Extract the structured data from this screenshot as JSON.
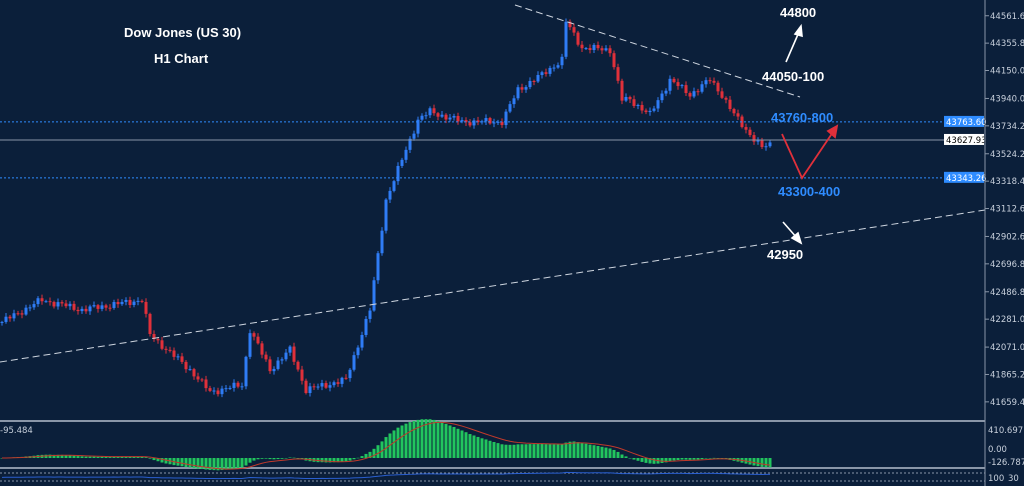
{
  "chart_data": {
    "type": "candlestick",
    "title": "Dow Jones (US 30)",
    "subtitle": "H1 Chart",
    "ylim": [
      41523,
      44680
    ],
    "y_ticks": [
      "44561.60",
      "44355.80",
      "44150.00",
      "43940.00",
      "43734.20",
      "43524.20",
      "43318.40",
      "43112.60",
      "42902.60",
      "42696.80",
      "42486.80",
      "42281.00",
      "42071.00",
      "41865.20",
      "41659.40"
    ],
    "y_tick_values": [
      44561.6,
      44355.8,
      44150,
      43940,
      43734.2,
      43524.2,
      43318.4,
      43112.6,
      42902.6,
      42696.8,
      42486.8,
      42281,
      42071,
      41865.2,
      41659.4
    ],
    "price_path": [
      [
        0,
        42260
      ],
      [
        10,
        42426
      ],
      [
        20,
        42351
      ],
      [
        35,
        42426
      ],
      [
        37,
        42163
      ],
      [
        47,
        41900
      ],
      [
        52,
        41734
      ],
      [
        60,
        41787
      ],
      [
        62,
        42201
      ],
      [
        67,
        41900
      ],
      [
        72,
        42050
      ],
      [
        76,
        41750
      ],
      [
        86,
        41825
      ],
      [
        89,
        42088
      ],
      [
        92,
        42351
      ],
      [
        96,
        43178
      ],
      [
        100,
        43479
      ],
      [
        104,
        43780
      ],
      [
        107,
        43840
      ],
      [
        115,
        43765
      ],
      [
        125,
        43765
      ],
      [
        129,
        44005
      ],
      [
        135,
        44118
      ],
      [
        140,
        44231
      ],
      [
        141,
        44517
      ],
      [
        145,
        44321
      ],
      [
        152,
        44306
      ],
      [
        155,
        43930
      ],
      [
        157,
        43930
      ],
      [
        162,
        43818
      ],
      [
        167,
        44080
      ],
      [
        172,
        43968
      ],
      [
        177,
        44080
      ],
      [
        180,
        43968
      ],
      [
        183,
        43818
      ],
      [
        186,
        43705
      ],
      [
        190,
        43569
      ],
      [
        192,
        43592
      ]
    ],
    "colors": {
      "up": "#2f7cf6",
      "down": "#e0303a",
      "background": "#0b1f3a",
      "macd_hist": "#22c55e",
      "signal": "#c0392b"
    },
    "horizontal_levels": [
      {
        "label": "43763.60",
        "value": 43763.6,
        "style": "dotted",
        "color": "#2f8cff"
      },
      {
        "label": "43627.93",
        "value": 43627.93,
        "style": "solid",
        "color": "#ffffff"
      },
      {
        "label": "43343.26",
        "value": 43343.26,
        "style": "dotted",
        "color": "#2f8cff"
      }
    ],
    "annotations": [
      {
        "text": "44800",
        "color": "#ffffff"
      },
      {
        "text": "44050-100",
        "color": "#ffffff"
      },
      {
        "text": "43760-800",
        "color": "#2f8cff"
      },
      {
        "text": "43300-400",
        "color": "#2f8cff"
      },
      {
        "text": "42950",
        "color": "#ffffff"
      }
    ],
    "indicator": {
      "readout": "-95.484",
      "ticks": [
        "410.697",
        "0.00",
        "-126.787"
      ],
      "ylim": [
        -126.787,
        410.697
      ]
    },
    "lower_indicator": {
      "ticks": [
        "100",
        "30"
      ]
    }
  }
}
